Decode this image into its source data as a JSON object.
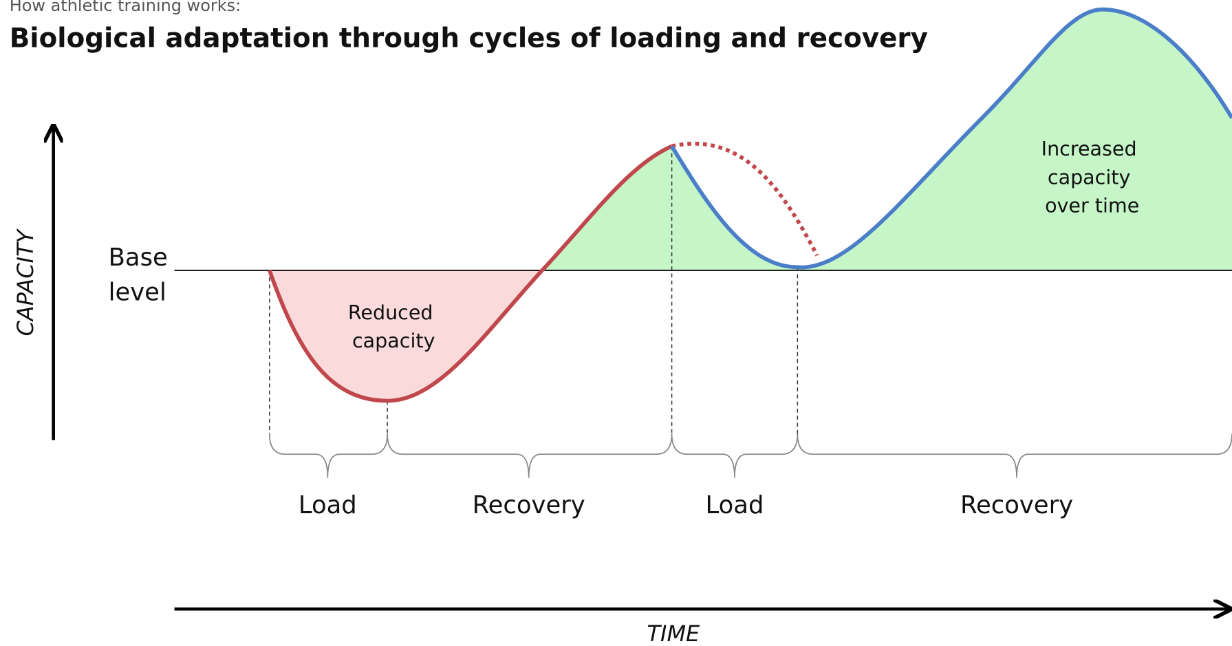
{
  "subtitle": "How athletic training works:",
  "title": "Biological adaptation through cycles of loading and recovery",
  "y_axis_label": "CAPACITY",
  "x_axis_label": "TIME",
  "base_label": [
    "Base",
    "level"
  ],
  "regions": [
    {
      "lines": [
        "Reduced",
        "capacity"
      ]
    },
    {
      "lines": [
        "Increased",
        "capacity",
        "over time"
      ]
    }
  ],
  "phases": [
    "Load",
    "Recovery",
    "Load",
    "Recovery"
  ]
}
